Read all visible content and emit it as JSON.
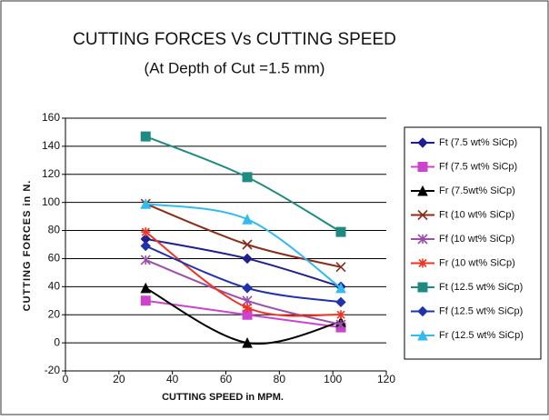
{
  "chart_data": {
    "type": "line",
    "title": "CUTTING FORCES Vs CUTTING SPEED",
    "subtitle": "(At Depth of Cut =1.5 mm)",
    "xlabel": "CUTTING SPEED in MPM.",
    "ylabel": "CUTTING FORCES in N.",
    "x": [
      30,
      68,
      103
    ],
    "xlim": [
      0,
      120
    ],
    "xticks": [
      0,
      20,
      40,
      60,
      80,
      100,
      120
    ],
    "ylim": [
      -20,
      160
    ],
    "yticks": [
      -20,
      0,
      20,
      40,
      60,
      80,
      100,
      120,
      140,
      160
    ],
    "grid": true,
    "legend": "right",
    "series": [
      {
        "name": "Ft (7.5 wt% SiCp)",
        "color": "#1f1f8f",
        "marker": "diamond",
        "values": [
          74,
          60,
          40
        ]
      },
      {
        "name": "Ff (7.5 wt% SiCp)",
        "color": "#cc44cc",
        "marker": "square",
        "values": [
          30,
          20,
          11
        ]
      },
      {
        "name": "Fr (7.5wt% SiCp)",
        "color": "#000000",
        "marker": "triangle",
        "values": [
          39,
          0,
          15
        ]
      },
      {
        "name": "Ft (10 wt% SiCp)",
        "color": "#8b2c1a",
        "marker": "x",
        "values": [
          99,
          70,
          54
        ]
      },
      {
        "name": "Ff (10 wt% SiCp)",
        "color": "#9a4fa8",
        "marker": "star",
        "values": [
          59,
          30,
          13
        ]
      },
      {
        "name": "Fr (10 wt% SiCp)",
        "color": "#ee3322",
        "marker": "plus",
        "values": [
          79,
          25,
          20
        ]
      },
      {
        "name": "Ft (12.5 wt% SiCp)",
        "color": "#1f8a80",
        "marker": "square",
        "values": [
          147,
          118,
          79
        ]
      },
      {
        "name": "Ff (12.5 wt% SiCp)",
        "color": "#2233aa",
        "marker": "diamond",
        "values": [
          69,
          39,
          29
        ]
      },
      {
        "name": "Fr (12.5 wt% SiCp)",
        "color": "#33bbee",
        "marker": "triangle",
        "values": [
          99,
          88,
          39
        ]
      }
    ]
  }
}
